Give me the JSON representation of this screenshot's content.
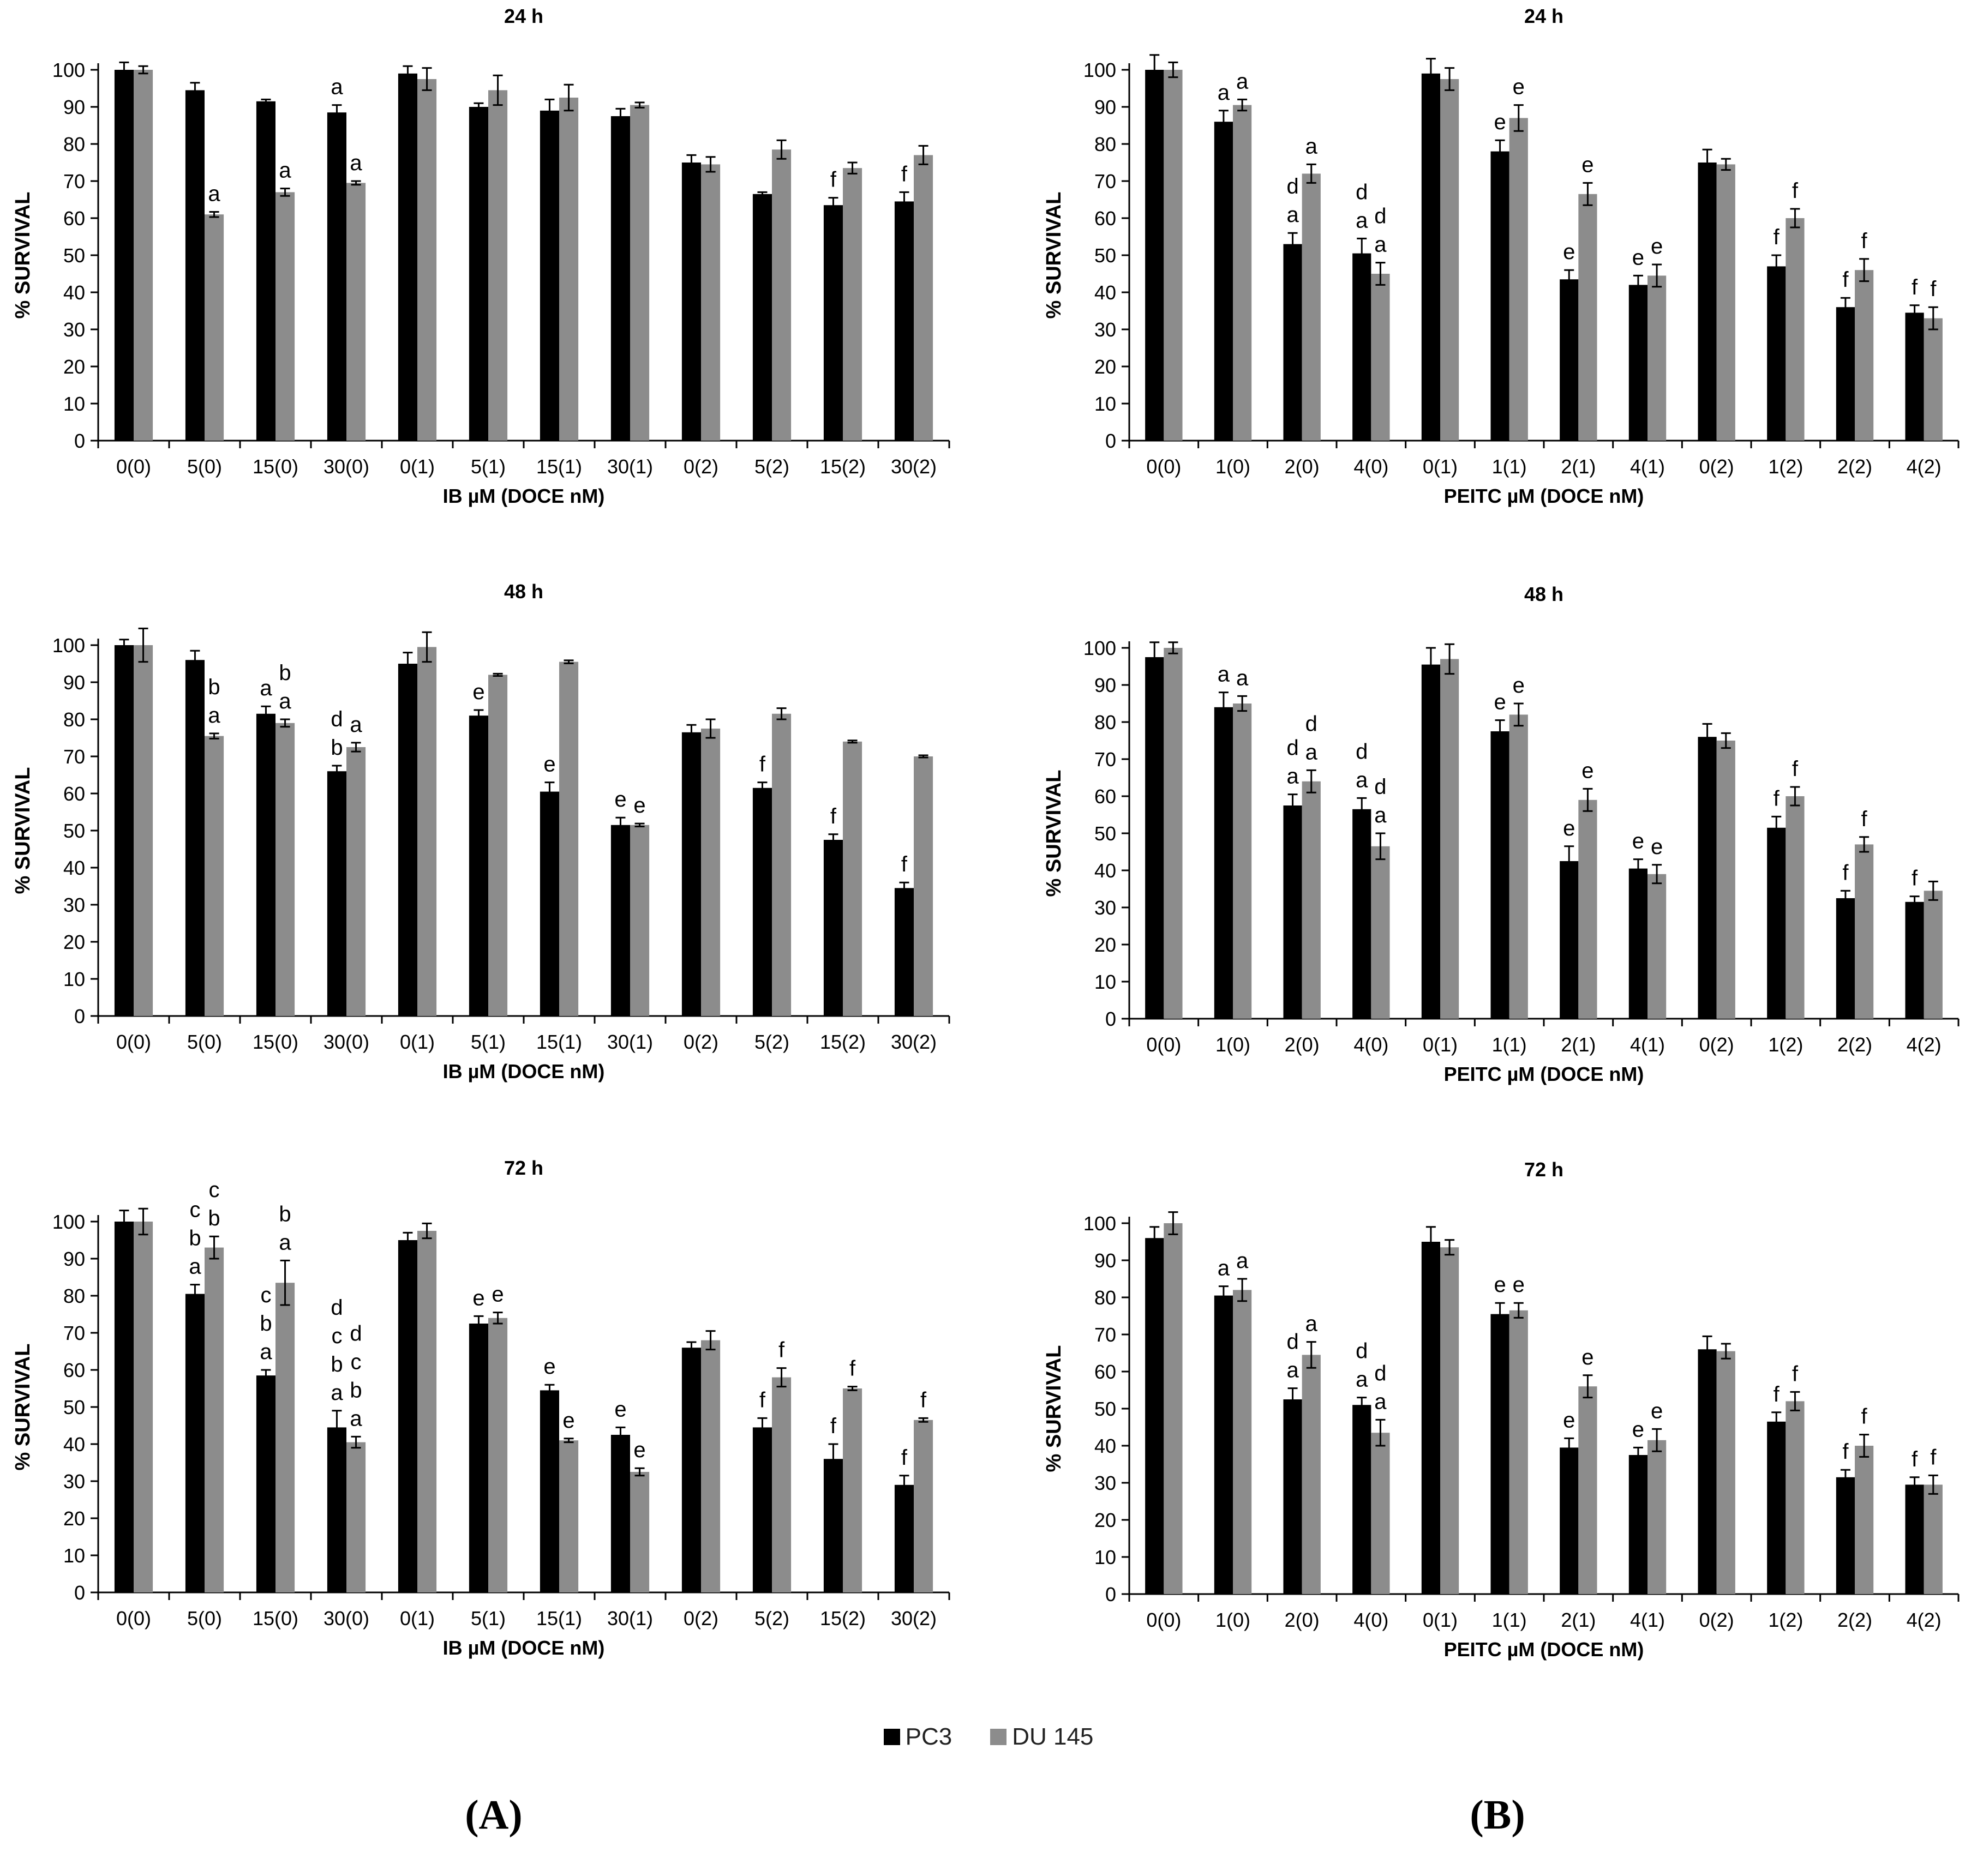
{
  "colors": {
    "pc3": "#000000",
    "du145": "#8c8c8c",
    "axis": "#000000",
    "grid": "#d9d9d9"
  },
  "legend": [
    {
      "name": "PC3",
      "color": "#000000"
    },
    {
      "name": "DU 145",
      "color": "#8c8c8c"
    }
  ],
  "panel_labels": {
    "a": "(A)",
    "b": "(B)"
  },
  "chart_data": [
    {
      "type": "bar",
      "title": "24 h",
      "ylabel": "% SURVIVAL",
      "xlabel": "IB µM (DOCE nM)",
      "ylim": [
        0,
        100
      ],
      "yticks": [
        0,
        10,
        20,
        30,
        40,
        50,
        60,
        70,
        80,
        90,
        100
      ],
      "categories": [
        "0(0)",
        "5(0)",
        "15(0)",
        "30(0)",
        "0(1)",
        "5(1)",
        "15(1)",
        "30(1)",
        "0(2)",
        "5(2)",
        "15(2)",
        "30(2)"
      ],
      "series": [
        {
          "name": "PC3",
          "values": [
            100,
            94.5,
            91.5,
            88.5,
            99,
            90,
            89,
            87.5,
            75,
            66.5,
            63.5,
            64.5
          ],
          "errors": [
            2,
            2,
            0.5,
            2,
            2,
            1,
            3,
            2,
            2,
            0.5,
            2,
            2.5
          ],
          "annotations": [
            "",
            "",
            "",
            "a",
            "",
            "",
            "",
            "",
            "",
            "",
            "f",
            "f"
          ]
        },
        {
          "name": "DU 145",
          "values": [
            100,
            61,
            67,
            69.5,
            97.5,
            94.5,
            92.5,
            90.5,
            74.5,
            78.5,
            73.5,
            77
          ],
          "errors": [
            1,
            0.7,
            1,
            0.5,
            3,
            4,
            3.5,
            0.7,
            2,
            2.5,
            1.5,
            2.5
          ],
          "annotations": [
            "",
            "a",
            "a",
            "a",
            "",
            "",
            "",
            "",
            "",
            "",
            "",
            ""
          ]
        }
      ]
    },
    {
      "type": "bar",
      "title": "24 h",
      "ylabel": "% SURVIVAL",
      "xlabel": "PEITC µM (DOCE nM)",
      "ylim": [
        0,
        100
      ],
      "yticks": [
        0,
        10,
        20,
        30,
        40,
        50,
        60,
        70,
        80,
        90,
        100
      ],
      "categories": [
        "0(0)",
        "1(0)",
        "2(0)",
        "4(0)",
        "0(1)",
        "1(1)",
        "2(1)",
        "4(1)",
        "0(2)",
        "1(2)",
        "2(2)",
        "4(2)"
      ],
      "series": [
        {
          "name": "PC3",
          "values": [
            100,
            86,
            53,
            50.5,
            99,
            78,
            43.5,
            42,
            75,
            47,
            36,
            34.5
          ],
          "errors": [
            4,
            3,
            3,
            4,
            4,
            3,
            2.5,
            2.5,
            3.5,
            3,
            2.5,
            2
          ],
          "annotations": [
            "",
            "a",
            "a d",
            "a d",
            "",
            "e",
            "e",
            "e",
            "",
            "f",
            "f",
            "f"
          ]
        },
        {
          "name": "DU 145",
          "values": [
            100,
            90.5,
            72,
            45,
            97.5,
            87,
            66.5,
            44.5,
            74.5,
            60,
            46,
            33
          ],
          "errors": [
            2,
            1.5,
            2.5,
            3,
            3,
            3.5,
            3,
            3,
            1.5,
            2.5,
            3,
            3
          ],
          "annotations": [
            "",
            "a",
            "a",
            "a d",
            "",
            "e",
            "e",
            "e",
            "",
            "f",
            "f",
            "f"
          ]
        }
      ]
    },
    {
      "type": "bar",
      "title": "48 h",
      "ylabel": "% SURVIVAL",
      "xlabel": "IB µM (DOCE nM)",
      "ylim": [
        0,
        100
      ],
      "yticks": [
        0,
        10,
        20,
        30,
        40,
        50,
        60,
        70,
        80,
        90,
        100
      ],
      "categories": [
        "0(0)",
        "5(0)",
        "15(0)",
        "30(0)",
        "0(1)",
        "5(1)",
        "15(1)",
        "30(1)",
        "0(2)",
        "5(2)",
        "15(2)",
        "30(2)"
      ],
      "series": [
        {
          "name": "PC3",
          "values": [
            100,
            96,
            81.5,
            66,
            95,
            81,
            60.5,
            51.5,
            76.5,
            61.5,
            47.5,
            34.5
          ],
          "errors": [
            1.5,
            2.5,
            2,
            1.5,
            3,
            1.5,
            2.5,
            2,
            2,
            1.5,
            1.5,
            1.5
          ],
          "annotations": [
            "",
            "",
            "a",
            "b d",
            "",
            "e",
            "e",
            "e",
            "",
            "f",
            "f",
            "f"
          ]
        },
        {
          "name": "DU 145",
          "values": [
            100,
            75.5,
            79,
            72.5,
            99.5,
            92,
            95.5,
            51.5,
            77.5,
            81.5,
            74,
            70
          ],
          "errors": [
            4.5,
            0.7,
            1,
            1.2,
            4,
            0.3,
            0.4,
            0.4,
            2.5,
            1.5,
            0.3,
            0.3
          ],
          "annotations": [
            "",
            "a b",
            "a b",
            "a",
            "",
            "",
            "",
            "e",
            "",
            "",
            "",
            ""
          ]
        }
      ]
    },
    {
      "type": "bar",
      "title": "48 h",
      "ylabel": "% SURVIVAL",
      "xlabel": "PEITC µM (DOCE nM)",
      "ylim": [
        0,
        100
      ],
      "yticks": [
        0,
        10,
        20,
        30,
        40,
        50,
        60,
        70,
        80,
        90,
        100
      ],
      "categories": [
        "0(0)",
        "1(0)",
        "2(0)",
        "4(0)",
        "0(1)",
        "1(1)",
        "2(1)",
        "4(1)",
        "0(2)",
        "1(2)",
        "2(2)",
        "4(2)"
      ],
      "series": [
        {
          "name": "PC3",
          "values": [
            97.5,
            84,
            57.5,
            56.5,
            95.5,
            77.5,
            42.5,
            40.5,
            76,
            51.5,
            32.5,
            31.5
          ],
          "errors": [
            4,
            4,
            3,
            3,
            4.5,
            3,
            4,
            2.5,
            3.5,
            3,
            2,
            1.5
          ],
          "annotations": [
            "",
            "a",
            "a d",
            "a d",
            "",
            "e",
            "e",
            "e",
            "",
            "f",
            "f",
            "f"
          ]
        },
        {
          "name": "DU 145",
          "values": [
            100,
            85,
            64,
            46.5,
            97,
            82,
            59,
            39,
            75,
            60,
            47,
            34.5
          ],
          "errors": [
            1.5,
            2,
            3,
            3.5,
            4,
            3,
            3,
            2.5,
            2,
            2.5,
            2,
            2.5
          ],
          "annotations": [
            "",
            "a",
            "a d",
            "a d",
            "",
            "e",
            "e",
            "e",
            "",
            "f",
            "f",
            ""
          ]
        }
      ]
    },
    {
      "type": "bar",
      "title": "72 h",
      "ylabel": "% SURVIVAL",
      "xlabel": "IB µM (DOCE nM)",
      "ylim": [
        0,
        100
      ],
      "yticks": [
        0,
        10,
        20,
        30,
        40,
        50,
        60,
        70,
        80,
        90,
        100
      ],
      "categories": [
        "0(0)",
        "5(0)",
        "15(0)",
        "30(0)",
        "0(1)",
        "5(1)",
        "15(1)",
        "30(1)",
        "0(2)",
        "5(2)",
        "15(2)",
        "30(2)"
      ],
      "series": [
        {
          "name": "PC3",
          "values": [
            100,
            80.5,
            58.5,
            44.5,
            95,
            72.5,
            54.5,
            42.5,
            66,
            44.5,
            36,
            29
          ],
          "errors": [
            3,
            2.5,
            1.5,
            4.5,
            2,
            2,
            1.5,
            2,
            1.5,
            2.5,
            4,
            2.5
          ],
          "annotations": [
            "",
            "a b c",
            "a b c",
            "a b c d",
            "",
            "e",
            "e",
            "e",
            "",
            "f",
            "f",
            "f"
          ]
        },
        {
          "name": "DU 145",
          "values": [
            100,
            93,
            83.5,
            40.5,
            97.5,
            74,
            41,
            32.5,
            68,
            58,
            55,
            46.5
          ],
          "errors": [
            3.5,
            3,
            6,
            1.5,
            2,
            1.5,
            0.5,
            1,
            2.5,
            2.5,
            0.5,
            0.5
          ],
          "annotations": [
            "",
            "b c",
            "a b",
            "a b c d",
            "",
            "e",
            "e",
            "e",
            "",
            "f",
            "f",
            "f"
          ]
        }
      ]
    },
    {
      "type": "bar",
      "title": "72 h",
      "ylabel": "% SURVIVAL",
      "xlabel": "PEITC µM (DOCE nM)",
      "ylim": [
        0,
        100
      ],
      "yticks": [
        0,
        10,
        20,
        30,
        40,
        50,
        60,
        70,
        80,
        90,
        100
      ],
      "categories": [
        "0(0)",
        "1(0)",
        "2(0)",
        "4(0)",
        "0(1)",
        "1(1)",
        "2(1)",
        "4(1)",
        "0(2)",
        "1(2)",
        "2(2)",
        "4(2)"
      ],
      "series": [
        {
          "name": "PC3",
          "values": [
            96,
            80.5,
            52.5,
            51,
            95,
            75.5,
            39.5,
            37.5,
            66,
            46.5,
            31.5,
            29.5
          ],
          "errors": [
            3,
            2.5,
            3,
            2,
            4,
            3,
            2.5,
            2,
            3.5,
            2.5,
            2,
            2
          ],
          "annotations": [
            "",
            "a",
            "a d",
            "a d",
            "",
            "e",
            "e",
            "e",
            "",
            "f",
            "f",
            "f"
          ]
        },
        {
          "name": "DU 145",
          "values": [
            100,
            82,
            64.5,
            43.5,
            93.5,
            76.5,
            56,
            41.5,
            65.5,
            52,
            40,
            29.5
          ],
          "errors": [
            3,
            3,
            3.5,
            3.5,
            2,
            2,
            3,
            3,
            2,
            2.5,
            3,
            2.5
          ],
          "annotations": [
            "",
            "a",
            "a",
            "a d",
            "",
            "e",
            "e",
            "e",
            "",
            "f",
            "f",
            "f"
          ]
        }
      ]
    }
  ]
}
